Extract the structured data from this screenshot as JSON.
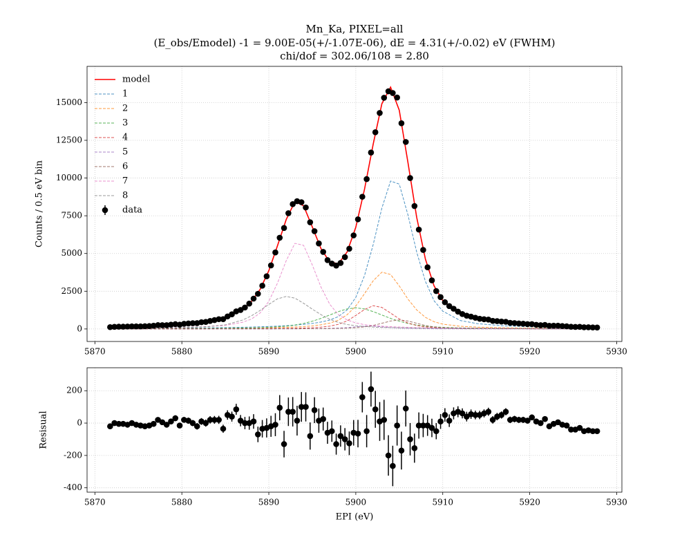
{
  "chart_data": [
    {
      "type": "line",
      "title": "Mn_Ka, PIXEL=all",
      "subtitle": [
        "(E_obs/Emodel) -1 = 9.00E-05(+/-1.07E-06), dE = 4.31(+/-0.02) eV (FWHM)",
        "chi/dof = 302.06/108 = 2.80"
      ],
      "ylabel": "Counts / 0.5 eV bin",
      "xlim": [
        5869.1,
        5930.6
      ],
      "xticks": [
        5870,
        5880,
        5890,
        5900,
        5910,
        5920,
        5930
      ],
      "ylim": [
        -830,
        17400
      ],
      "yticks": [
        0,
        2500,
        5000,
        7500,
        10000,
        12500,
        15000
      ],
      "grid": true,
      "legend": "upper left",
      "x": [
        5872,
        5876,
        5880,
        5883,
        5885,
        5887,
        5888,
        5889,
        5890,
        5891,
        5892,
        5893,
        5894,
        5895,
        5896,
        5897,
        5898,
        5899,
        5900,
        5901,
        5902,
        5903,
        5904,
        5905,
        5906,
        5907,
        5908,
        5909,
        5910,
        5912,
        5914,
        5917,
        5921,
        5927
      ],
      "series": [
        {
          "name": "model",
          "color": "#ff0000",
          "linestyle": "solid",
          "values": [
            140,
            200,
            307,
            481,
            714,
            1298,
            1820,
            2624,
            3861,
            5522,
            7251,
            8437,
            8162,
            6757,
            5323,
            4433,
            4326,
            5095,
            6738,
            9246,
            12244,
            14923,
            16022,
            14492,
            11023,
            7402,
            4640,
            2854,
            1878,
            985,
            654,
            415,
            257,
            150
          ]
        },
        {
          "name": "1",
          "color": "#1f77b4",
          "linestyle": "dashed",
          "values": [
            33,
            43,
            58,
            75,
            92,
            113,
            127,
            144,
            164,
            188,
            218,
            256,
            305,
            368,
            457,
            590,
            820,
            1260,
            2090,
            3530,
            5590,
            8010,
            9800,
            9600,
            7550,
            5100,
            3160,
            1870,
            1180,
            560,
            350,
            210,
            124,
            68
          ]
        },
        {
          "name": "2",
          "color": "#ff7f0e",
          "linestyle": "dashed",
          "values": [
            15,
            20,
            27,
            35,
            43,
            54,
            62,
            70,
            80,
            94,
            110,
            131,
            158,
            200,
            277,
            384,
            581,
            939,
            1520,
            2333,
            3192,
            3762,
            3610,
            2850,
            1976,
            1265,
            771,
            479,
            319,
            179,
            122,
            76,
            46,
            26
          ]
        },
        {
          "name": "3",
          "color": "#2ca02c",
          "linestyle": "dashed",
          "values": [
            14,
            19,
            27,
            37,
            46,
            61,
            70,
            87,
            109,
            140,
            183,
            256,
            364,
            512,
            700,
            924,
            1148,
            1330,
            1400,
            1330,
            1148,
            924,
            700,
            512,
            364,
            256,
            183,
            140,
            109,
            70,
            53,
            37,
            24,
            15
          ]
        },
        {
          "name": "4",
          "color": "#d62728",
          "linestyle": "dashed",
          "values": [
            5,
            7,
            10,
            13,
            16,
            20,
            23,
            27,
            31,
            37,
            44,
            53,
            66,
            87,
            122,
            186,
            307,
            532,
            894,
            1287,
            1542,
            1426,
            1054,
            667,
            392,
            226,
            141,
            98,
            74,
            48,
            33,
            22,
            13,
            8
          ]
        },
        {
          "name": "5",
          "color": "#9467bd",
          "linestyle": "dashed",
          "values": [
            1,
            2,
            2,
            3,
            4,
            5,
            6,
            7,
            8,
            9,
            11,
            13,
            16,
            21,
            28,
            40,
            60,
            92,
            140,
            188,
            188,
            140,
            92,
            60,
            40,
            28,
            21,
            16,
            13,
            9,
            6,
            4,
            3,
            2
          ]
        },
        {
          "name": "6",
          "color": "#8c564b",
          "linestyle": "dashed",
          "values": [
            1,
            2,
            2,
            3,
            4,
            5,
            6,
            7,
            8,
            9,
            11,
            13,
            15,
            17,
            21,
            27,
            35,
            50,
            79,
            135,
            233,
            376,
            527,
            600,
            527,
            376,
            233,
            135,
            79,
            35,
            21,
            13,
            7,
            4
          ]
        },
        {
          "name": "7",
          "color": "#e377c2",
          "linestyle": "dashed",
          "values": [
            39,
            59,
            98,
            158,
            236,
            447,
            655,
            1056,
            1833,
            3045,
            4524,
            5672,
            5539,
            4240,
            2772,
            1641,
            945,
            597,
            400,
            284,
            226,
            185,
            153,
            129,
            110,
            95,
            82,
            72,
            64,
            52,
            42,
            32,
            24,
            16
          ]
        },
        {
          "name": "8",
          "color": "#7f7f7f",
          "linestyle": "dashed",
          "values": [
            32,
            48,
            83,
            157,
            273,
            593,
            871,
            1226,
            1628,
            2000,
            2150,
            2043,
            1699,
            1312,
            946,
            641,
            430,
            295,
            215,
            159,
            125,
            100,
            86,
            74,
            64,
            56,
            49,
            44,
            40,
            32,
            27,
            21,
            16,
            11
          ]
        }
      ],
      "points": {
        "name": "data",
        "color": "#000000",
        "x": [
          5871.75,
          5872.25,
          5872.75,
          5873.25,
          5873.75,
          5874.25,
          5874.75,
          5875.25,
          5875.75,
          5876.25,
          5876.75,
          5877.25,
          5877.75,
          5878.25,
          5878.75,
          5879.25,
          5879.75,
          5880.25,
          5880.75,
          5881.25,
          5881.75,
          5882.25,
          5882.75,
          5883.25,
          5883.75,
          5884.25,
          5884.75,
          5885.25,
          5885.75,
          5886.25,
          5886.75,
          5887.25,
          5887.75,
          5888.25,
          5888.75,
          5889.25,
          5889.75,
          5890.25,
          5890.75,
          5891.25,
          5891.75,
          5892.25,
          5892.75,
          5893.25,
          5893.75,
          5894.25,
          5894.75,
          5895.25,
          5895.75,
          5896.25,
          5896.75,
          5897.25,
          5897.75,
          5898.25,
          5898.75,
          5899.25,
          5899.75,
          5900.25,
          5900.75,
          5901.25,
          5901.75,
          5902.25,
          5902.75,
          5903.25,
          5903.75,
          5904.25,
          5904.75,
          5905.25,
          5905.75,
          5906.25,
          5906.75,
          5907.25,
          5907.75,
          5908.25,
          5908.75,
          5909.25,
          5909.75,
          5910.25,
          5910.75,
          5911.25,
          5911.75,
          5912.25,
          5912.75,
          5913.25,
          5913.75,
          5914.25,
          5914.75,
          5915.25,
          5915.75,
          5916.25,
          5916.75,
          5917.25,
          5917.75,
          5918.25,
          5918.75,
          5919.25,
          5919.75,
          5920.25,
          5920.75,
          5921.25,
          5921.75,
          5922.25,
          5922.75,
          5923.25,
          5923.75,
          5924.25,
          5924.75,
          5925.25,
          5925.75,
          5926.25,
          5926.75,
          5927.25,
          5927.75
        ],
        "values": [
          120,
          140,
          150,
          150,
          160,
          170,
          170,
          170,
          180,
          190,
          215,
          253,
          251,
          250,
          283,
          316,
          285,
          341,
          365,
          379,
          388,
          447,
          466,
          530,
          588,
          647,
          650,
          830,
          970,
          1165,
          1255,
          1420,
          1680,
          2010,
          2330,
          2865,
          3490,
          4210,
          5070,
          6045,
          6690,
          7670,
          8270,
          8465,
          8400,
          8050,
          7070,
          6480,
          5665,
          5105,
          4560,
          4330,
          4200,
          4370,
          4760,
          5315,
          6200,
          7265,
          8760,
          9930,
          11690,
          13035,
          14310,
          15320,
          15750,
          15635,
          15335,
          13630,
          12390,
          10000,
          8145,
          6585,
          5235,
          4085,
          3220,
          2510,
          2110,
          1770,
          1515,
          1340,
          1150,
          990,
          880,
          815,
          740,
          675,
          645,
          620,
          535,
          520,
          490,
          475,
          405,
          390,
          365,
          345,
          320,
          320,
          275,
          250,
          265,
          210,
          215,
          215,
          190,
          177,
          144,
          136,
          140,
          113,
          112,
          100,
          95
        ]
      }
    },
    {
      "type": "errorbar",
      "ylabel": "Resisual",
      "xlabel": "EPI (eV)",
      "xlim": [
        5869.1,
        5930.6
      ],
      "xticks": [
        5870,
        5880,
        5890,
        5900,
        5910,
        5920,
        5930
      ],
      "ylim": [
        -427,
        342
      ],
      "yticks": [
        -400,
        -200,
        0,
        200
      ],
      "grid": true,
      "color": "#000000",
      "x": [
        5871.75,
        5872.25,
        5872.75,
        5873.25,
        5873.75,
        5874.25,
        5874.75,
        5875.25,
        5875.75,
        5876.25,
        5876.75,
        5877.25,
        5877.75,
        5878.25,
        5878.75,
        5879.25,
        5879.75,
        5880.25,
        5880.75,
        5881.25,
        5881.75,
        5882.25,
        5882.75,
        5883.25,
        5883.75,
        5884.25,
        5884.75,
        5885.25,
        5885.75,
        5886.25,
        5886.75,
        5887.25,
        5887.75,
        5888.25,
        5888.75,
        5889.25,
        5889.75,
        5890.25,
        5890.75,
        5891.25,
        5891.75,
        5892.25,
        5892.75,
        5893.25,
        5893.75,
        5894.25,
        5894.75,
        5895.25,
        5895.75,
        5896.25,
        5896.75,
        5897.25,
        5897.75,
        5898.25,
        5898.75,
        5899.25,
        5899.75,
        5900.25,
        5900.75,
        5901.25,
        5901.75,
        5902.25,
        5902.75,
        5903.25,
        5903.75,
        5904.25,
        5904.75,
        5905.25,
        5905.75,
        5906.25,
        5906.75,
        5907.25,
        5907.75,
        5908.25,
        5908.75,
        5909.25,
        5909.75,
        5910.25,
        5910.75,
        5911.25,
        5911.75,
        5912.25,
        5912.75,
        5913.25,
        5913.75,
        5914.25,
        5914.75,
        5915.25,
        5915.75,
        5916.25,
        5916.75,
        5917.25,
        5917.75,
        5918.25,
        5918.75,
        5919.25,
        5919.75,
        5920.25,
        5920.75,
        5921.25,
        5921.75,
        5922.25,
        5922.75,
        5923.25,
        5923.75,
        5924.25,
        5924.75,
        5925.25,
        5925.75,
        5926.25,
        5926.75,
        5927.25,
        5927.75
      ],
      "values": [
        -20,
        0,
        -5,
        -5,
        -10,
        0,
        -10,
        -15,
        -20,
        -15,
        -5,
        20,
        5,
        -10,
        10,
        30,
        -15,
        20,
        15,
        0,
        -20,
        10,
        0,
        20,
        20,
        20,
        -35,
        50,
        40,
        85,
        15,
        0,
        0,
        10,
        -70,
        -35,
        -30,
        -20,
        -10,
        95,
        -130,
        70,
        70,
        15,
        100,
        100,
        -80,
        80,
        15,
        25,
        -60,
        -50,
        -130,
        -80,
        -100,
        -125,
        -60,
        -65,
        160,
        -50,
        210,
        85,
        10,
        20,
        -200,
        -265,
        -15,
        -170,
        90,
        -100,
        -155,
        -15,
        -15,
        -15,
        -30,
        -50,
        10,
        50,
        15,
        60,
        70,
        60,
        40,
        55,
        50,
        50,
        60,
        70,
        20,
        40,
        50,
        70,
        20,
        25,
        20,
        20,
        15,
        35,
        10,
        0,
        25,
        -20,
        -5,
        5,
        -10,
        -15,
        -40,
        -40,
        -30,
        -50,
        -45,
        -50,
        -50
      ],
      "errors": [
        11,
        12,
        12,
        12,
        13,
        13,
        13,
        13,
        13,
        14,
        15,
        16,
        16,
        16,
        17,
        18,
        17,
        18,
        19,
        19,
        20,
        21,
        22,
        23,
        24,
        25,
        25,
        29,
        31,
        34,
        35,
        38,
        41,
        45,
        48,
        54,
        59,
        65,
        71,
        78,
        82,
        88,
        91,
        92,
        92,
        90,
        84,
        80,
        75,
        71,
        68,
        66,
        65,
        66,
        69,
        73,
        79,
        85,
        94,
        100,
        108,
        114,
        120,
        124,
        125,
        125,
        124,
        117,
        111,
        100,
        90,
        81,
        72,
        64,
        57,
        50,
        46,
        42,
        39,
        37,
        34,
        31,
        30,
        29,
        27,
        26,
        25,
        25,
        23,
        23,
        22,
        22,
        20,
        20,
        19,
        19,
        18,
        18,
        17,
        16,
        16,
        14,
        15,
        15,
        14,
        13,
        12,
        12,
        12,
        11,
        11,
        10,
        10
      ]
    }
  ]
}
